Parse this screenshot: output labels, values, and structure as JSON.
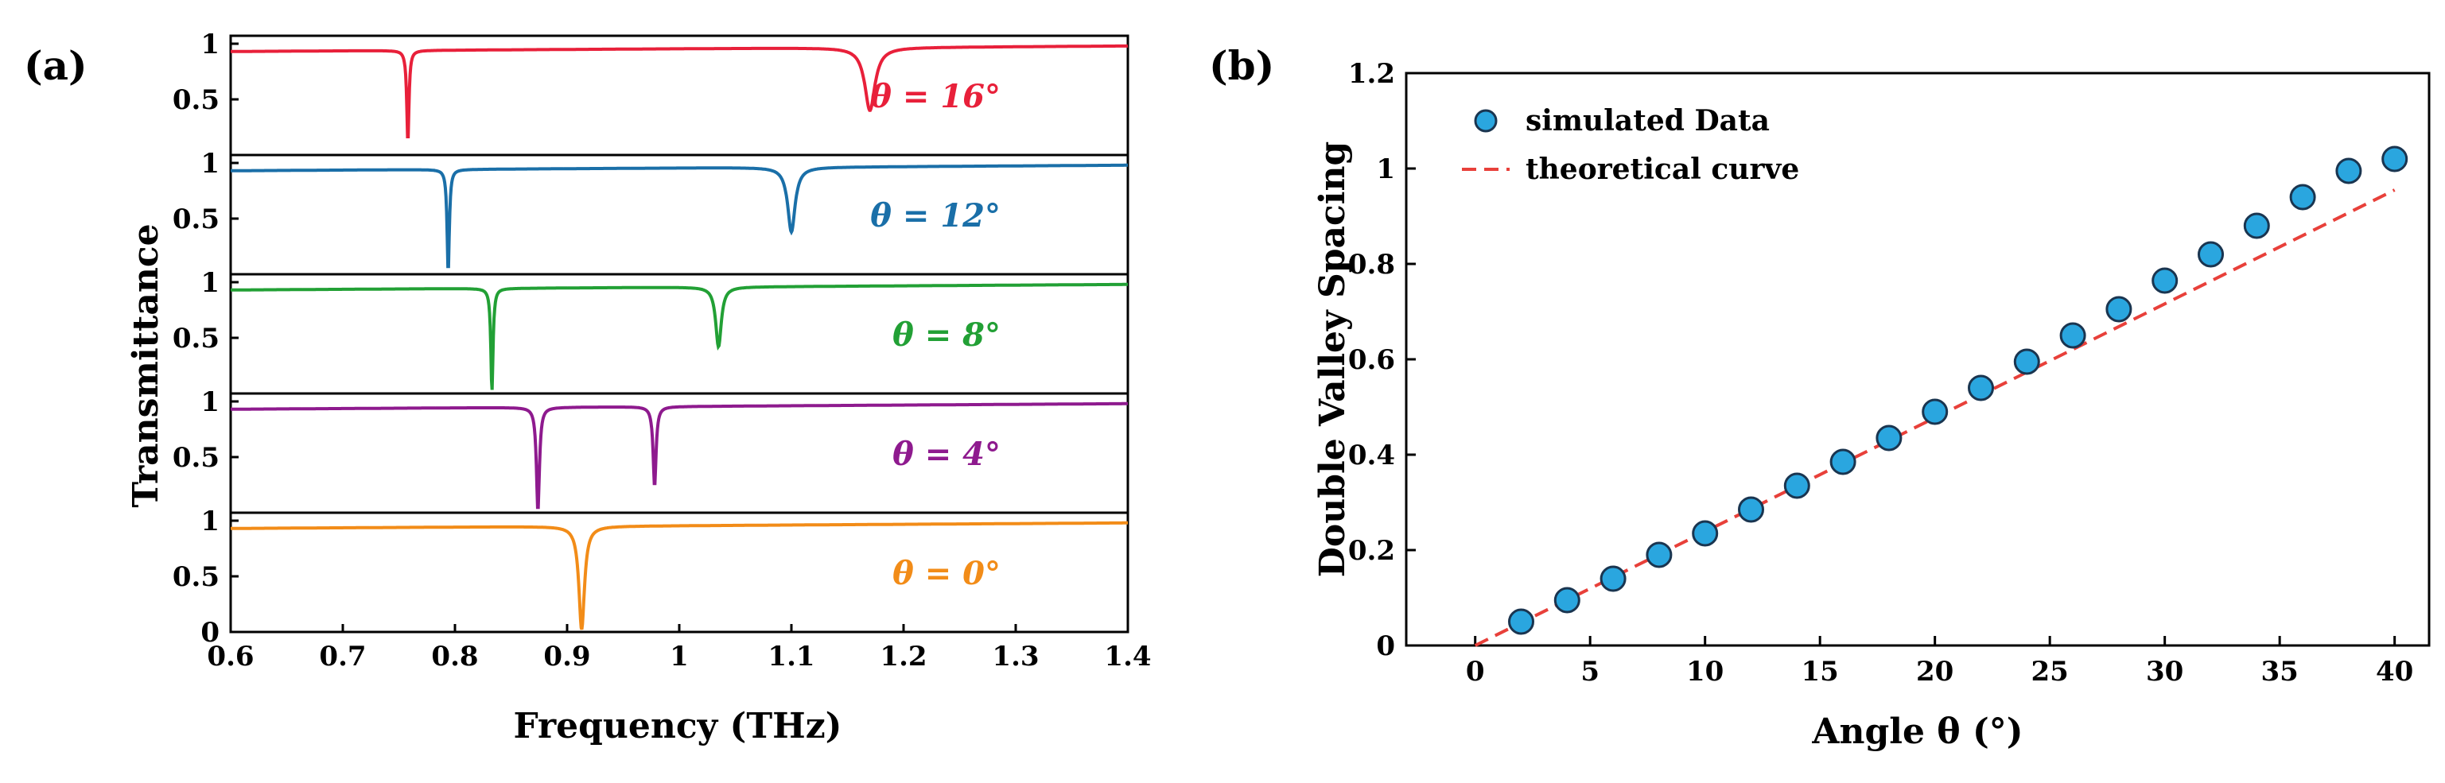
{
  "chart_data": [
    {
      "panel": "(a)",
      "type": "line",
      "xlabel": "Frequency (THz)",
      "ylabel": "Transmittance",
      "xlim": [
        0.6,
        1.4
      ],
      "x_ticks": [
        "0.6",
        "0.7",
        "0.8",
        "0.9",
        "1",
        "1.1",
        "1.2",
        "1.3",
        "1.4"
      ],
      "subplot_y_ticks": [
        "1",
        "0.5"
      ],
      "bottom_extra_tick": "0",
      "subplots": [
        {
          "label": "θ = 16°",
          "color": "#e8203a",
          "baseline": 0.93,
          "dips": [
            {
              "f": 0.758,
              "min": 0.12,
              "w": 0.0012
            },
            {
              "f": 1.17,
              "min": 0.4,
              "w": 0.0055
            }
          ]
        },
        {
          "label": "θ = 12°",
          "color": "#1a6fa8",
          "baseline": 0.93,
          "dips": [
            {
              "f": 0.794,
              "min": 0.02,
              "w": 0.0012
            },
            {
              "f": 1.1,
              "min": 0.38,
              "w": 0.004
            }
          ]
        },
        {
          "label": "θ = 8°",
          "color": "#22a035",
          "baseline": 0.93,
          "dips": [
            {
              "f": 0.833,
              "min": 0.02,
              "w": 0.0012
            },
            {
              "f": 1.035,
              "min": 0.42,
              "w": 0.003
            }
          ]
        },
        {
          "label": "θ = 4°",
          "color": "#8e1a8e",
          "baseline": 0.93,
          "dips": [
            {
              "f": 0.874,
              "min": 0.02,
              "w": 0.0016
            },
            {
              "f": 0.978,
              "min": 0.24,
              "w": 0.0016
            }
          ]
        },
        {
          "label": "θ = 0°",
          "color": "#f28c18",
          "baseline": 0.93,
          "dips": [
            {
              "f": 0.913,
              "min": 0.02,
              "w": 0.003
            }
          ]
        }
      ]
    },
    {
      "panel": "(b)",
      "type": "scatter",
      "xlabel": "Angle θ (°)",
      "ylabel": "Double Valley Spacing",
      "xlim": [
        -3,
        41.5
      ],
      "ylim": [
        0,
        1.2
      ],
      "x_ticks": [
        "0",
        "5",
        "10",
        "15",
        "20",
        "25",
        "30",
        "35",
        "40"
      ],
      "y_ticks": [
        "0",
        "0.2",
        "0.4",
        "0.6",
        "0.8",
        "1",
        "1.2"
      ],
      "legend": [
        "simulated Data",
        "theoretical curve"
      ],
      "series": [
        {
          "name": "simulated Data",
          "color": "#2aa6df",
          "edge": "#1a3550",
          "x": [
            2,
            4,
            6,
            8,
            10,
            12,
            14,
            16,
            18,
            20,
            22,
            24,
            26,
            28,
            30,
            32,
            34,
            36,
            38,
            40
          ],
          "y": [
            0.05,
            0.095,
            0.14,
            0.19,
            0.235,
            0.285,
            0.335,
            0.385,
            0.435,
            0.49,
            0.54,
            0.595,
            0.65,
            0.705,
            0.765,
            0.82,
            0.88,
            0.94,
            0.995,
            1.02
          ]
        },
        {
          "name": "theoretical curve",
          "color": "#e8403a",
          "style": "dashed",
          "x": [
            0,
            40
          ],
          "y": [
            0,
            0.955
          ]
        }
      ]
    }
  ]
}
